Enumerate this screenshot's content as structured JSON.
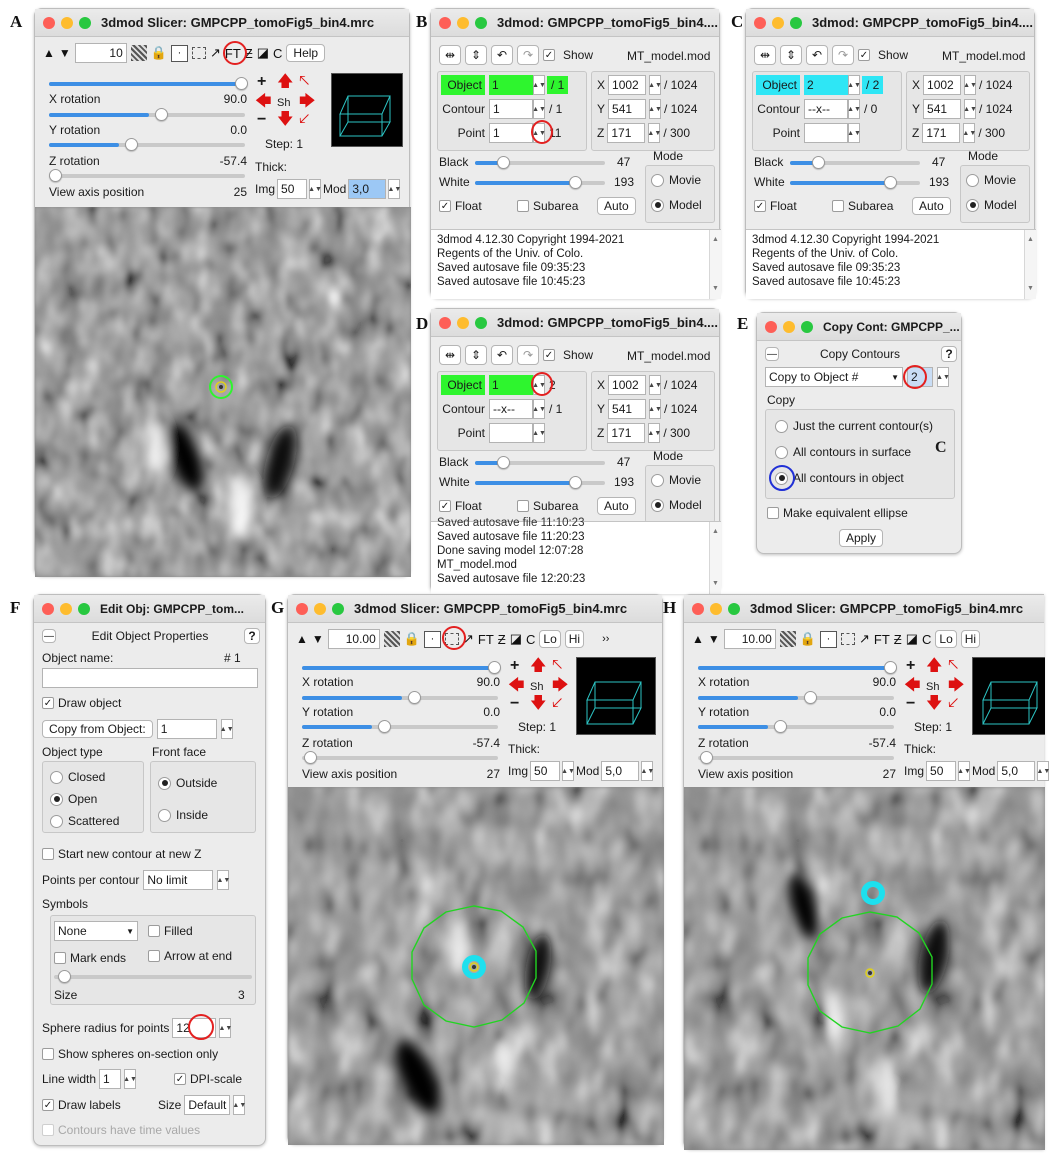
{
  "labels": {
    "A": "A",
    "B": "B",
    "C": "C",
    "D": "D",
    "E": "E",
    "F": "F",
    "G": "G",
    "H": "H"
  },
  "panelA": {
    "title": "3dmod Slicer: GMPCPP_tomoFig5_bin4.mrc",
    "zoom": "10",
    "help": "Help",
    "ft": "FT",
    "x_rotation": {
      "label": "X rotation",
      "value": "90.0"
    },
    "y_rotation": {
      "label": "Y rotation",
      "value": "0.0"
    },
    "z_rotation": {
      "label": "Z rotation",
      "value": "-57.4"
    },
    "view_axis": {
      "label": "View axis position",
      "value": "25"
    },
    "sh": "Sh",
    "step": "Step: 1",
    "thick": "Thick:",
    "img_label": "Img",
    "img_value": "50",
    "mod_label": "Mod",
    "mod_value": "3,0"
  },
  "panelB": {
    "title": "3dmod: GMPCPP_tomoFig5_bin4....",
    "show": "Show",
    "model": "MT_model.mod",
    "object_label": "Object",
    "object_value": "1",
    "object_total": "/ 1",
    "contour_label": "Contour",
    "contour_value": "1",
    "contour_total": "/ 1",
    "point_label": "Point",
    "point_value": "1",
    "point_total": "11",
    "x_label": "X",
    "x_value": "1002",
    "x_total": "/ 1024",
    "y_label": "Y",
    "y_value": "541",
    "y_total": "/ 1024",
    "z_label": "Z",
    "z_value": "171",
    "z_total": "/ 300",
    "black_label": "Black",
    "black_value": "47",
    "white_label": "White",
    "white_value": "193",
    "mode_label": "Mode",
    "movie": "Movie",
    "model_mode": "Model",
    "float": "Float",
    "subarea": "Subarea",
    "auto": "Auto",
    "log": [
      "3dmod 4.12.30 Copyright 1994-2021",
      "Regents of the Univ. of Colo.",
      "Saved autosave file 09:35:23",
      "Saved autosave file 10:45:23"
    ]
  },
  "panelC": {
    "title": "3dmod: GMPCPP_tomoFig5_bin4....",
    "show": "Show",
    "model": "MT_model.mod",
    "object_label": "Object",
    "object_value": "2",
    "object_total": "/ 2",
    "contour_label": "Contour",
    "contour_value": "--x--",
    "contour_total": "/ 0",
    "point_label": "Point",
    "point_value": "",
    "x_label": "X",
    "x_value": "1002",
    "x_total": "/ 1024",
    "y_label": "Y",
    "y_value": "541",
    "y_total": "/ 1024",
    "z_label": "Z",
    "z_value": "171",
    "z_total": "/ 300",
    "black_label": "Black",
    "black_value": "47",
    "white_label": "White",
    "white_value": "193",
    "mode_label": "Mode",
    "movie": "Movie",
    "model_mode": "Model",
    "float": "Float",
    "subarea": "Subarea",
    "auto": "Auto",
    "log": [
      "3dmod 4.12.30 Copyright 1994-2021",
      "Regents of the Univ. of Colo.",
      "Saved autosave file 09:35:23",
      "Saved autosave file 10:45:23"
    ]
  },
  "panelD": {
    "title": "3dmod: GMPCPP_tomoFig5_bin4....",
    "show": "Show",
    "model": "MT_model.mod",
    "object_label": "Object",
    "object_value": "1",
    "object_total": "2",
    "contour_label": "Contour",
    "contour_value": "--x--",
    "contour_total": "/ 1",
    "point_label": "Point",
    "point_value": "",
    "x_label": "X",
    "x_value": "1002",
    "x_total": "/ 1024",
    "y_label": "Y",
    "y_value": "541",
    "y_total": "/ 1024",
    "z_label": "Z",
    "z_value": "171",
    "z_total": "/ 300",
    "black_label": "Black",
    "black_value": "47",
    "white_label": "White",
    "white_value": "193",
    "mode_label": "Mode",
    "movie": "Movie",
    "model_mode": "Model",
    "float": "Float",
    "subarea": "Subarea",
    "auto": "Auto",
    "log": [
      "Saved autosave file 11:10:23",
      "Saved autosave file 11:20:23",
      "Done saving model 12:07:28",
      "MT_model.mod",
      "Saved autosave file 12:20:23"
    ]
  },
  "panelE": {
    "title": "Copy Cont: GMPCPP_...",
    "header": "Copy Contours",
    "help": "?",
    "copy_to": "Copy to Object #",
    "target": "2",
    "copy_label": "Copy",
    "opt1": "Just the current contour(s)",
    "opt2": "All contours in surface",
    "opt3": "All contours in object",
    "marker_c": "C",
    "ellipse": "Make equivalent ellipse",
    "apply": "Apply"
  },
  "panelF": {
    "title": "Edit Obj: GMPCPP_tom...",
    "header": "Edit Object Properties",
    "help": "?",
    "object_name": "Object name:",
    "object_number": "# 1",
    "draw_object": "Draw object",
    "copy_from": "Copy from Object:",
    "copy_from_value": "1",
    "object_type": "Object type",
    "front_face": "Front face",
    "closed": "Closed",
    "open": "Open",
    "scattered": "Scattered",
    "outside": "Outside",
    "inside": "Inside",
    "new_contour": "Start new contour at new Z",
    "points_per_contour": "Points per contour",
    "points_value": "No limit",
    "symbols": "Symbols",
    "symbol_value": "None",
    "filled": "Filled",
    "mark_ends": "Mark ends",
    "arrow_end": "Arrow at end",
    "size_label": "Size",
    "size_value": "3",
    "sphere_radius": "Sphere radius for points",
    "sphere_value": "12",
    "spheres_only": "Show spheres on-section only",
    "line_width": "Line width",
    "line_width_value": "1",
    "dpi_scale": "DPI-scale",
    "draw_labels": "Draw labels",
    "label_size": "Size",
    "label_size_value": "Default",
    "time_values": "Contours have time values"
  },
  "panelG": {
    "title": "3dmod Slicer: GMPCPP_tomoFig5_bin4.mrc",
    "zoom": "10.00",
    "lo": "Lo",
    "hi": "Hi",
    "ft": "FT",
    "more": "››",
    "x_rotation": {
      "label": "X rotation",
      "value": "90.0"
    },
    "y_rotation": {
      "label": "Y rotation",
      "value": "0.0"
    },
    "z_rotation": {
      "label": "Z rotation",
      "value": "-57.4"
    },
    "view_axis": {
      "label": "View axis position",
      "value": "27"
    },
    "sh": "Sh",
    "step": "Step: 1",
    "thick": "Thick:",
    "img_label": "Img",
    "img_value": "50",
    "mod_label": "Mod",
    "mod_value": "5,0"
  },
  "panelH": {
    "title": "3dmod Slicer: GMPCPP_tomoFig5_bin4.mrc",
    "zoom": "10.00",
    "lo": "Lo",
    "hi": "Hi",
    "ft": "FT",
    "x_rotation": {
      "label": "X rotation",
      "value": "90.0"
    },
    "y_rotation": {
      "label": "Y rotation",
      "value": "0.0"
    },
    "z_rotation": {
      "label": "Z rotation",
      "value": "-57.4"
    },
    "view_axis": {
      "label": "View axis position",
      "value": "27"
    },
    "sh": "Sh",
    "step": "Step: 1",
    "thick": "Thick:",
    "img_label": "Img",
    "img_value": "50",
    "mod_label": "Mod",
    "mod_value": "5,0"
  },
  "colors": {
    "object1": "#2ef52e",
    "object2": "#2ee6f5",
    "annotation": "#e32020",
    "highlight": "#2030d6"
  }
}
